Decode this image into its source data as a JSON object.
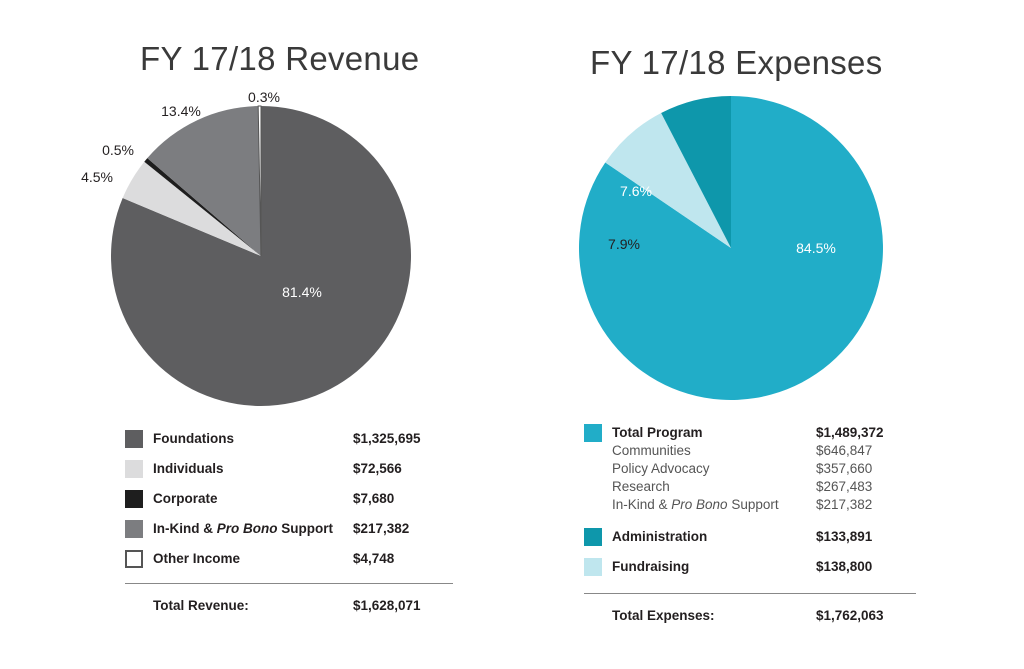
{
  "revenue": {
    "title": "FY 17/18 Revenue",
    "legend": [
      {
        "label": "Foundations",
        "amount": "$1,325,695",
        "color": "#5e5e60"
      },
      {
        "label": "Individuals",
        "amount": "$72,566",
        "color": "#dcdcdd"
      },
      {
        "label": "Corporate",
        "amount": "$7,680",
        "color": "#1e1e1e"
      },
      {
        "label_pre": "In-Kind & ",
        "label_em": "Pro Bono",
        "label_post": " Support",
        "amount": "$217,382",
        "color": "#7c7d80"
      },
      {
        "label": "Other Income",
        "amount": "$4,748",
        "color": "#ffffff"
      }
    ],
    "total_label": "Total Revenue:",
    "total_amount": "$1,628,071"
  },
  "expenses": {
    "title": "FY 17/18 Expenses",
    "legend_main": {
      "label": "Total Program",
      "amount": "$1,489,372",
      "color": "#21adc8"
    },
    "sub_items": [
      {
        "label": "Communities",
        "amount": "$646,847"
      },
      {
        "label": "Policy Advocacy",
        "amount": "$357,660"
      },
      {
        "label": "Research",
        "amount": "$267,483"
      },
      {
        "label_pre": "In-Kind & ",
        "label_em": "Pro Bono",
        "label_post": " Support",
        "amount": "$217,382"
      }
    ],
    "legend_rest": [
      {
        "label": "Administration",
        "amount": "$133,891",
        "color": "#0e97ab"
      },
      {
        "label": "Fundraising",
        "amount": "$138,800",
        "color": "#bfe6ee"
      }
    ],
    "total_label": "Total Expenses:",
    "total_amount": "$1,762,063"
  },
  "chart_data": [
    {
      "type": "pie",
      "title": "FY 17/18 Revenue",
      "slices": [
        {
          "name": "Foundations",
          "value": 81.4,
          "label": "81.4%",
          "color": "#5e5e60"
        },
        {
          "name": "Individuals",
          "value": 4.5,
          "label": "4.5%",
          "color": "#dcdcdd"
        },
        {
          "name": "Corporate",
          "value": 0.5,
          "label": "0.5%",
          "color": "#1e1e1e"
        },
        {
          "name": "In-Kind & Pro Bono Support",
          "value": 13.4,
          "label": "13.4%",
          "color": "#7c7d80"
        },
        {
          "name": "Other Income",
          "value": 0.3,
          "label": "0.3%",
          "color": "#ffffff"
        }
      ]
    },
    {
      "type": "pie",
      "title": "FY 17/18 Expenses",
      "slices": [
        {
          "name": "Total Program",
          "value": 84.5,
          "label": "84.5%",
          "color": "#21adc8"
        },
        {
          "name": "Fundraising",
          "value": 7.9,
          "label": "7.9%",
          "color": "#bfe6ee"
        },
        {
          "name": "Administration",
          "value": 7.6,
          "label": "7.6%",
          "color": "#0e97ab"
        }
      ]
    }
  ]
}
